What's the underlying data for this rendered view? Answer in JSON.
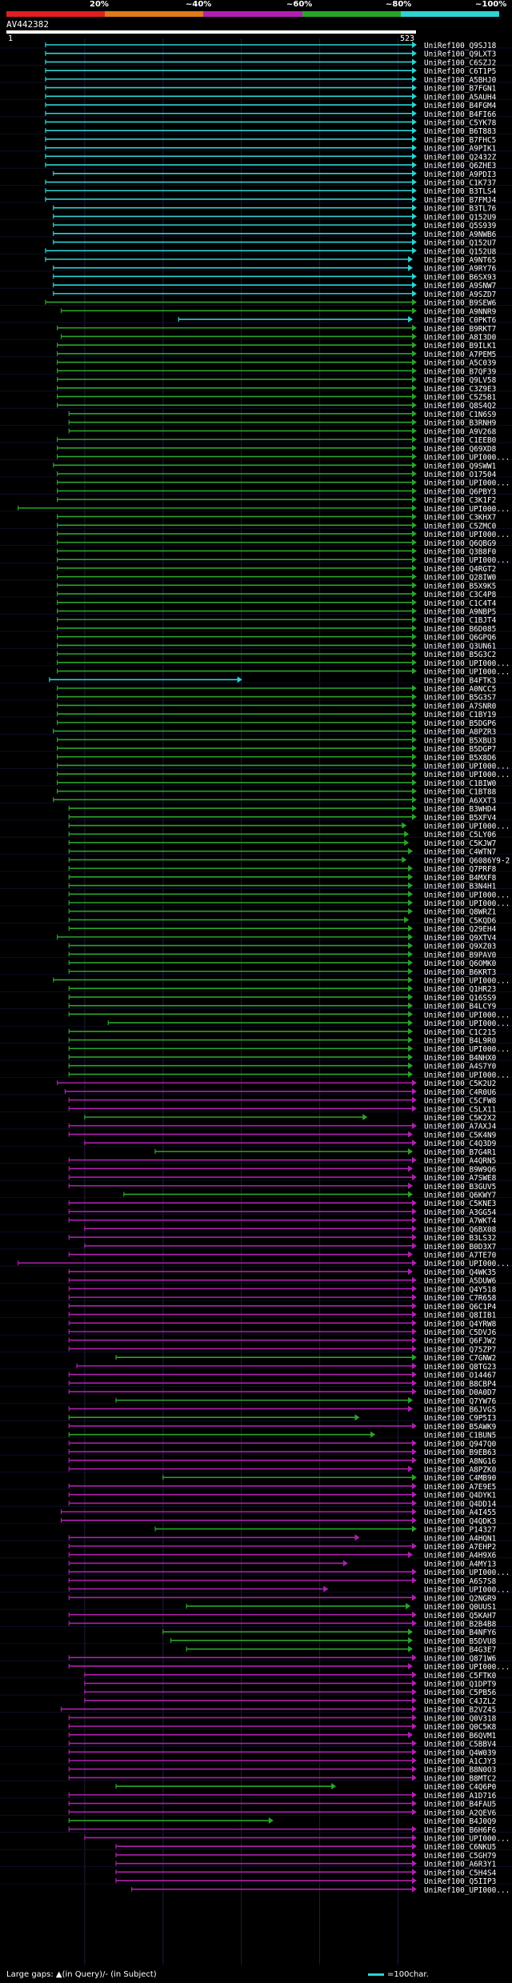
{
  "scale": {
    "labels": [
      "20%",
      "~40%",
      "~60%",
      "~80%",
      "~100%"
    ],
    "colors": [
      "#e01f1f",
      "#e07a1a",
      "#b01fb0",
      "#2aa52a",
      "#2ed3d3"
    ]
  },
  "query": {
    "name": "AV442382",
    "start": "1",
    "end": "523"
  },
  "footer": {
    "gaps": "Large gaps: ▲(in Query)/- (in Subject)",
    "legend": "=100char."
  },
  "chart_data": {
    "type": "alignment-diagram",
    "query_length": 523,
    "hits": [
      [
        "UniRef100_Q9SJ18",
        50,
        523,
        "c"
      ],
      [
        "UniRef100_Q9LXT3",
        50,
        523,
        "c"
      ],
      [
        "UniRef100_C6SZJ2",
        50,
        523,
        "c"
      ],
      [
        "UniRef100_C6T1P5",
        50,
        523,
        "c"
      ],
      [
        "UniRef100_A5BHJ0",
        50,
        523,
        "c"
      ],
      [
        "UniRef100_B7FGN1",
        50,
        523,
        "c"
      ],
      [
        "UniRef100_A5AUH4",
        50,
        523,
        "c"
      ],
      [
        "UniRef100_B4FGM4",
        50,
        523,
        "c"
      ],
      [
        "UniRef100_B4FI66",
        50,
        523,
        "c"
      ],
      [
        "UniRef100_C5YK78",
        50,
        523,
        "c"
      ],
      [
        "UniRef100_B6T883",
        50,
        523,
        "c"
      ],
      [
        "UniRef100_B7FHC5",
        50,
        523,
        "c"
      ],
      [
        "UniRef100_A9PIK1",
        50,
        523,
        "c"
      ],
      [
        "UniRef100_Q2432Z",
        50,
        523,
        "c"
      ],
      [
        "UniRef100_Q6ZHE3",
        50,
        523,
        "c"
      ],
      [
        "UniRef100_A9PDI3",
        60,
        523,
        "c"
      ],
      [
        "UniRef100_C1K737",
        50,
        523,
        "c"
      ],
      [
        "UniRef100_B3TLS4",
        50,
        523,
        "c"
      ],
      [
        "UniRef100_B7FMJ4",
        50,
        523,
        "c"
      ],
      [
        "UniRef100_B3TL76",
        60,
        523,
        "c"
      ],
      [
        "UniRef100_Q152U9",
        60,
        523,
        "c"
      ],
      [
        "UniRef100_Q5S939",
        60,
        523,
        "c"
      ],
      [
        "UniRef100_A9NWB6",
        60,
        523,
        "c"
      ],
      [
        "UniRef100_Q152U7",
        60,
        523,
        "c"
      ],
      [
        "UniRef100_Q152U8",
        50,
        523,
        "c"
      ],
      [
        "UniRef100_A9NT65",
        50,
        518,
        "c"
      ],
      [
        "UniRef100_A9RY76",
        60,
        518,
        "c"
      ],
      [
        "UniRef100_B6SX93",
        60,
        523,
        "c"
      ],
      [
        "UniRef100_A9SNW7",
        60,
        523,
        "c"
      ],
      [
        "UniRef100_A9SZD7",
        60,
        523,
        "c"
      ],
      [
        "UniRef100_B9SEW6",
        50,
        523,
        "g"
      ],
      [
        "UniRef100_A9NNR9",
        70,
        523,
        "g"
      ],
      [
        "UniRef100_C0PKT6",
        220,
        518,
        "c"
      ],
      [
        "UniRef100_B9RKT7",
        65,
        523,
        "g"
      ],
      [
        "UniRef100_A8I3D0",
        70,
        523,
        "g"
      ],
      [
        "UniRef100_B9ILK1",
        65,
        523,
        "g"
      ],
      [
        "UniRef100_A7PEM5",
        65,
        523,
        "g"
      ],
      [
        "UniRef100_A5C039",
        65,
        523,
        "g"
      ],
      [
        "UniRef100_B7QF39",
        65,
        523,
        "g"
      ],
      [
        "UniRef100_Q9LV58",
        65,
        523,
        "g"
      ],
      [
        "UniRef100_C3Z9E3",
        65,
        523,
        "g"
      ],
      [
        "UniRef100_C5Z5B1",
        65,
        523,
        "g"
      ],
      [
        "UniRef100_Q8S4Q2",
        65,
        523,
        "g"
      ],
      [
        "UniRef100_C1N6S9",
        80,
        523,
        "g"
      ],
      [
        "UniRef100_B3RNH9",
        80,
        523,
        "g"
      ],
      [
        "UniRef100_A9V268",
        80,
        523,
        "g"
      ],
      [
        "UniRef100_C1EEB0",
        65,
        523,
        "g"
      ],
      [
        "UniRef100_Q69XD8",
        65,
        523,
        "g"
      ],
      [
        "UniRef100_UPI000...",
        65,
        523,
        "g"
      ],
      [
        "UniRef100_Q9SWW1",
        60,
        523,
        "g"
      ],
      [
        "UniRef100_O17504",
        65,
        523,
        "g"
      ],
      [
        "UniRef100_UPI000...",
        65,
        523,
        "g"
      ],
      [
        "UniRef100_Q6PBY3",
        65,
        523,
        "g"
      ],
      [
        "UniRef100_C3K1F2",
        65,
        523,
        "g"
      ],
      [
        "UniRef100_UPI000...",
        15,
        523,
        "g"
      ],
      [
        "UniRef100_C3KHX7",
        65,
        523,
        "g"
      ],
      [
        "UniRef100_C5ZMC0",
        65,
        523,
        "g"
      ],
      [
        "UniRef100_UPI000...",
        65,
        523,
        "g"
      ],
      [
        "UniRef100_Q6QBG9",
        65,
        523,
        "g"
      ],
      [
        "UniRef100_Q3B8F0",
        65,
        523,
        "g"
      ],
      [
        "UniRef100_UPI000...",
        65,
        523,
        "g"
      ],
      [
        "UniRef100_Q4RGT2",
        65,
        523,
        "g"
      ],
      [
        "UniRef100_Q28IW0",
        65,
        523,
        "g"
      ],
      [
        "UniRef100_B5X9K5",
        65,
        523,
        "g"
      ],
      [
        "UniRef100_C3C4P8",
        65,
        523,
        "g"
      ],
      [
        "UniRef100_C1C4T4",
        65,
        523,
        "g"
      ],
      [
        "UniRef100_A9NBP5",
        65,
        523,
        "g"
      ],
      [
        "UniRef100_C1BJT4",
        65,
        523,
        "g"
      ],
      [
        "UniRef100_B6D085",
        65,
        523,
        "g"
      ],
      [
        "UniRef100_Q6GPQ6",
        65,
        523,
        "g"
      ],
      [
        "UniRef100_Q3UN61",
        65,
        523,
        "g"
      ],
      [
        "UniRef100_B5G3C2",
        65,
        523,
        "g"
      ],
      [
        "UniRef100_UPI000...",
        65,
        523,
        "g"
      ],
      [
        "UniRef100_UPI000...",
        65,
        523,
        "g"
      ],
      [
        "UniRef100_B4FTK3",
        55,
        300,
        "c"
      ],
      [
        "UniRef100_A0NCC5",
        65,
        523,
        "g"
      ],
      [
        "UniRef100_B5G3S7",
        65,
        523,
        "g"
      ],
      [
        "UniRef100_A7SNR0",
        65,
        523,
        "g"
      ],
      [
        "UniRef100_C1BY19",
        65,
        523,
        "g"
      ],
      [
        "UniRef100_B5DGP6",
        65,
        523,
        "g"
      ],
      [
        "UniRef100_A8PZR3",
        60,
        523,
        "g"
      ],
      [
        "UniRef100_B5XBU3",
        65,
        523,
        "g"
      ],
      [
        "UniRef100_B5DGP7",
        65,
        523,
        "g"
      ],
      [
        "UniRef100_B5X8D6",
        65,
        523,
        "g"
      ],
      [
        "UniRef100_UPI000...",
        65,
        523,
        "g"
      ],
      [
        "UniRef100_UPI000...",
        65,
        523,
        "g"
      ],
      [
        "UniRef100_C1BIW0",
        65,
        523,
        "g"
      ],
      [
        "UniRef100_C1BT88",
        65,
        523,
        "g"
      ],
      [
        "UniRef100_A6XXT3",
        60,
        523,
        "g"
      ],
      [
        "UniRef100_B3WHD4",
        80,
        523,
        "g"
      ],
      [
        "UniRef100_B5XFV4",
        80,
        523,
        "g"
      ],
      [
        "UniRef100_UPI000...",
        80,
        510,
        "g"
      ],
      [
        "UniRef100_C5LY06",
        80,
        513,
        "g"
      ],
      [
        "UniRef100_C5KJW7",
        80,
        513,
        "g"
      ],
      [
        "UniRef100_C4WTN7",
        80,
        518,
        "g"
      ],
      [
        "UniRef100_Q6086Y9-2",
        80,
        510,
        "g"
      ],
      [
        "UniRef100_Q7PRF8",
        80,
        518,
        "g"
      ],
      [
        "UniRef100_B4MXF8",
        80,
        518,
        "g"
      ],
      [
        "UniRef100_B3N4H1",
        80,
        518,
        "g"
      ],
      [
        "UniRef100_UPI000...",
        80,
        518,
        "g"
      ],
      [
        "UniRef100_UPI000...",
        80,
        518,
        "g"
      ],
      [
        "UniRef100_Q8WRZ1",
        80,
        518,
        "g"
      ],
      [
        "UniRef100_C5KQD6",
        80,
        513,
        "g"
      ],
      [
        "UniRef100_Q29EH4",
        80,
        518,
        "g"
      ],
      [
        "UniRef100_Q9XTV4",
        65,
        518,
        "g"
      ],
      [
        "UniRef100_Q9XZ03",
        80,
        518,
        "g"
      ],
      [
        "UniRef100_B9PAV0",
        80,
        518,
        "g"
      ],
      [
        "UniRef100_Q6OMK0",
        80,
        518,
        "g"
      ],
      [
        "UniRef100_B6KRT3",
        80,
        518,
        "g"
      ],
      [
        "UniRef100_UPI000...",
        60,
        518,
        "g"
      ],
      [
        "UniRef100_Q1HR23",
        80,
        518,
        "g"
      ],
      [
        "UniRef100_Q16SS9",
        80,
        518,
        "g"
      ],
      [
        "UniRef100_B4LCY9",
        80,
        518,
        "g"
      ],
      [
        "UniRef100_UPI000...",
        80,
        518,
        "g"
      ],
      [
        "UniRef100_UPI000...",
        130,
        518,
        "g"
      ],
      [
        "UniRef100_C1C215",
        80,
        518,
        "g"
      ],
      [
        "UniRef100_B4L9R0",
        80,
        518,
        "g"
      ],
      [
        "UniRef100_UPI000...",
        80,
        518,
        "g"
      ],
      [
        "UniRef100_B4NHX0",
        80,
        518,
        "g"
      ],
      [
        "UniRef100_A4S7Y0",
        80,
        518,
        "g"
      ],
      [
        "UniRef100_UPI000...",
        80,
        518,
        "g"
      ],
      [
        "UniRef100_C5K2U2",
        65,
        523,
        "m"
      ],
      [
        "UniRef100_C4R0U6",
        75,
        523,
        "m"
      ],
      [
        "UniRef100_C5CFW8",
        80,
        523,
        "m"
      ],
      [
        "UniRef100_C5LX11",
        80,
        523,
        "m"
      ],
      [
        "UniRef100_C5K2X2",
        100,
        460,
        "g"
      ],
      [
        "UniRef100_A7AXJ4",
        80,
        523,
        "m"
      ],
      [
        "UniRef100_C5K4N9",
        80,
        518,
        "m"
      ],
      [
        "UniRef100_C4Q3D9",
        100,
        523,
        "m"
      ],
      [
        "UniRef100_B7G4R1",
        190,
        518,
        "g"
      ],
      [
        "UniRef100_A4QRN5",
        80,
        523,
        "m"
      ],
      [
        "UniRef100_B9W9Q6",
        80,
        518,
        "m"
      ],
      [
        "UniRef100_A7SWE8",
        80,
        523,
        "m"
      ],
      [
        "UniRef100_B3GUV5",
        80,
        518,
        "m"
      ],
      [
        "UniRef100_Q6KWY7",
        150,
        518,
        "g"
      ],
      [
        "UniRef100_C5KNE3",
        80,
        523,
        "m"
      ],
      [
        "UniRef100_A3GG54",
        80,
        523,
        "m"
      ],
      [
        "UniRef100_A7WKT4",
        80,
        523,
        "m"
      ],
      [
        "UniRef100_Q6BX08",
        100,
        523,
        "m"
      ],
      [
        "UniRef100_B3LS32",
        80,
        523,
        "m"
      ],
      [
        "UniRef100_B0D3X7",
        100,
        523,
        "m"
      ],
      [
        "UniRef100_A7TE70",
        80,
        518,
        "m"
      ],
      [
        "UniRef100_UPI000...",
        15,
        523,
        "m"
      ],
      [
        "UniRef100_Q4WK35",
        80,
        518,
        "m"
      ],
      [
        "UniRef100_A5DUW6",
        80,
        523,
        "m"
      ],
      [
        "UniRef100_Q4Y518",
        80,
        523,
        "m"
      ],
      [
        "UniRef100_C7R658",
        80,
        523,
        "m"
      ],
      [
        "UniRef100_Q6C1P4",
        80,
        523,
        "m"
      ],
      [
        "UniRef100_Q8IIB1",
        80,
        523,
        "m"
      ],
      [
        "UniRef100_Q4YRW8",
        80,
        523,
        "m"
      ],
      [
        "UniRef100_C5DVJ6",
        80,
        523,
        "m"
      ],
      [
        "UniRef100_Q6FJW2",
        80,
        523,
        "m"
      ],
      [
        "UniRef100_Q75ZP7",
        80,
        523,
        "m"
      ],
      [
        "UniRef100_C7GNW2",
        140,
        523,
        "g"
      ],
      [
        "UniRef100_Q8TG23",
        90,
        523,
        "m"
      ],
      [
        "UniRef100_O14467",
        80,
        523,
        "m"
      ],
      [
        "UniRef100_B8CBP4",
        80,
        523,
        "m"
      ],
      [
        "UniRef100_D0A0D7",
        80,
        523,
        "m"
      ],
      [
        "UniRef100_Q7YW76",
        140,
        518,
        "g"
      ],
      [
        "UniRef100_B6JVG5",
        80,
        518,
        "m"
      ],
      [
        "UniRef100_C9P5I3",
        80,
        450,
        "g"
      ],
      [
        "UniRef100_B5AWK9",
        80,
        523,
        "m"
      ],
      [
        "UniRef100_C1BUN5",
        80,
        470,
        "g"
      ],
      [
        "UniRef100_Q947Q0",
        80,
        523,
        "m"
      ],
      [
        "UniRef100_B9EB63",
        80,
        523,
        "m"
      ],
      [
        "UniRef100_A8NG16",
        80,
        523,
        "m"
      ],
      [
        "UniRef100_A8PZK0",
        80,
        518,
        "m"
      ],
      [
        "UniRef100_C4MB90",
        200,
        523,
        "g"
      ],
      [
        "UniRef100_A7E9E5",
        80,
        523,
        "m"
      ],
      [
        "UniRef100_Q4DYK1",
        80,
        523,
        "m"
      ],
      [
        "UniRef100_Q4DD14",
        80,
        523,
        "m"
      ],
      [
        "UniRef100_A4I455",
        70,
        523,
        "m"
      ],
      [
        "UniRef100_Q4QDK3",
        70,
        523,
        "m"
      ],
      [
        "UniRef100_P14327",
        190,
        523,
        "g"
      ],
      [
        "UniRef100_A4HQN1",
        80,
        450,
        "m"
      ],
      [
        "UniRef100_A7EHP2",
        80,
        523,
        "m"
      ],
      [
        "UniRef100_A4H9X6",
        80,
        518,
        "m"
      ],
      [
        "UniRef100_A4MY13",
        80,
        435,
        "m"
      ],
      [
        "UniRef100_UPI000...",
        80,
        523,
        "m"
      ],
      [
        "UniRef100_A6S7S8",
        80,
        523,
        "m"
      ],
      [
        "UniRef100_UPI000...",
        80,
        410,
        "m"
      ],
      [
        "UniRef100_Q2NGR9",
        80,
        523,
        "m"
      ],
      [
        "UniRef100_Q0UUS1",
        230,
        515,
        "g"
      ],
      [
        "UniRef100_Q5KAH7",
        80,
        523,
        "m"
      ],
      [
        "UniRef100_B2B4B8",
        80,
        523,
        "m"
      ],
      [
        "UniRef100_B4NFY6",
        200,
        518,
        "g"
      ],
      [
        "UniRef100_B5DVU8",
        210,
        518,
        "g"
      ],
      [
        "UniRef100_B4G3E7",
        230,
        518,
        "g"
      ],
      [
        "UniRef100_Q871W6",
        80,
        523,
        "m"
      ],
      [
        "UniRef100_UPI000...",
        80,
        518,
        "m"
      ],
      [
        "UniRef100_C5FTK0",
        100,
        523,
        "m"
      ],
      [
        "UniRef100_Q1DPT9",
        100,
        523,
        "m"
      ],
      [
        "UniRef100_C5PB56",
        100,
        523,
        "m"
      ],
      [
        "UniRef100_C4JZL2",
        100,
        523,
        "m"
      ],
      [
        "UniRef100_B2VZ45",
        70,
        523,
        "m"
      ],
      [
        "UniRef100_Q0V318",
        80,
        523,
        "m"
      ],
      [
        "UniRef100_Q0C5K8",
        80,
        523,
        "m"
      ],
      [
        "UniRef100_B6QVM1",
        80,
        518,
        "m"
      ],
      [
        "UniRef100_C5BBV4",
        80,
        523,
        "m"
      ],
      [
        "UniRef100_Q4W039",
        80,
        523,
        "m"
      ],
      [
        "UniRef100_A1CJY3",
        80,
        523,
        "m"
      ],
      [
        "UniRef100_B8N0O3",
        80,
        523,
        "m"
      ],
      [
        "UniRef100_B8MTC2",
        80,
        523,
        "m"
      ],
      [
        "UniRef100_C4Q6P0",
        140,
        420,
        "g"
      ],
      [
        "UniRef100_A1D716",
        80,
        523,
        "m"
      ],
      [
        "UniRef100_B4FAU5",
        80,
        523,
        "m"
      ],
      [
        "UniRef100_A2QEV6",
        80,
        523,
        "m"
      ],
      [
        "UniRef100_B4J0Q9",
        80,
        340,
        "g"
      ],
      [
        "UniRef100_B6H6F6",
        80,
        523,
        "m"
      ],
      [
        "UniRef100_UPI000...",
        100,
        523,
        "m"
      ],
      [
        "UniRef100_C6NKU5",
        140,
        523,
        "m"
      ],
      [
        "UniRef100_C5GH79",
        140,
        523,
        "m"
      ],
      [
        "UniRef100_A6R3Y1",
        140,
        523,
        "m"
      ],
      [
        "UniRef100_C5H4S4",
        140,
        523,
        "m"
      ],
      [
        "UniRef100_Q5IIP3",
        140,
        523,
        "m"
      ],
      [
        "UniRef100_UPI000...",
        160,
        523,
        "m"
      ]
    ]
  }
}
